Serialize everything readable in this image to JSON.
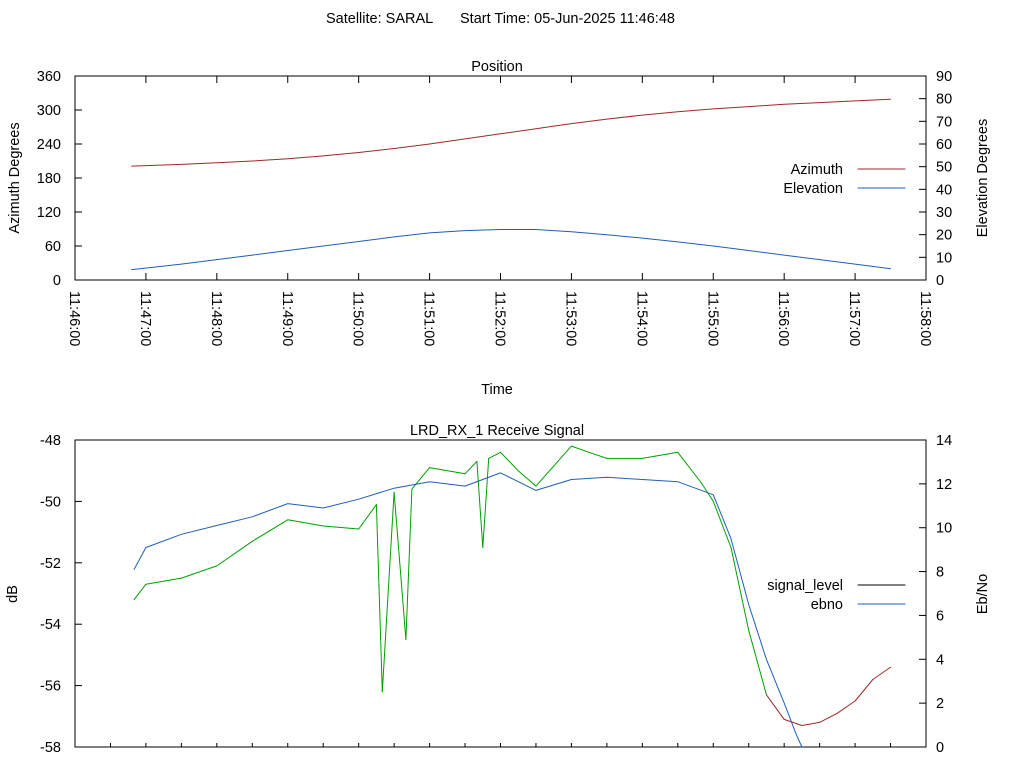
{
  "page": {
    "header_satellite": "Satellite: SARAL",
    "header_start_time": "Start Time: 05-Jun-2025 11:46:48"
  },
  "colors": {
    "azimuth": "#a0282a",
    "elevation": "#1e5fb4",
    "signal_level": "#000000",
    "ebno": "#1e5fb4",
    "signal_good": "#00a000",
    "signal_weak": "#a0282a"
  },
  "chart_data": [
    {
      "type": "line",
      "title": "Position",
      "xlabel": "Time",
      "ylabel": "Azimuth Degrees",
      "y2label": "Elevation Degrees",
      "xlim": [
        "11:46:00",
        "11:58:00"
      ],
      "ylim": [
        0,
        360
      ],
      "y2lim": [
        0,
        90
      ],
      "x_tick_labels": [
        "11:46:00",
        "11:47:00",
        "11:48:00",
        "11:49:00",
        "11:50:00",
        "11:51:00",
        "11:52:00",
        "11:53:00",
        "11:54:00",
        "11:55:00",
        "11:56:00",
        "11:57:00",
        "11:58:00"
      ],
      "y_tick_labels": [
        "0",
        "60",
        "120",
        "180",
        "240",
        "300",
        "360"
      ],
      "y2_tick_labels": [
        "0",
        "10",
        "20",
        "30",
        "40",
        "50",
        "60",
        "70",
        "80",
        "90"
      ],
      "legend_position": "right",
      "grid": false,
      "series": [
        {
          "name": "Azimuth",
          "axis": "y",
          "x": [
            "11:46:48",
            "11:47:30",
            "11:48:00",
            "11:48:30",
            "11:49:00",
            "11:49:30",
            "11:50:00",
            "11:50:30",
            "11:51:00",
            "11:51:30",
            "11:52:00",
            "11:52:30",
            "11:53:00",
            "11:53:30",
            "11:54:00",
            "11:54:30",
            "11:55:00",
            "11:55:30",
            "11:56:00",
            "11:56:30",
            "11:57:00",
            "11:57:30"
          ],
          "values": [
            201,
            204,
            207,
            210,
            214,
            219,
            225,
            232,
            240,
            249,
            258,
            267,
            276,
            284,
            291,
            297,
            302,
            306,
            310,
            313,
            316,
            319
          ]
        },
        {
          "name": "Elevation",
          "axis": "y2",
          "x": [
            "11:46:48",
            "11:47:30",
            "11:48:00",
            "11:48:30",
            "11:49:00",
            "11:49:30",
            "11:50:00",
            "11:50:30",
            "11:51:00",
            "11:51:30",
            "11:52:00",
            "11:52:30",
            "11:53:00",
            "11:53:30",
            "11:54:00",
            "11:54:30",
            "11:55:00",
            "11:55:30",
            "11:56:00",
            "11:56:30",
            "11:57:00",
            "11:57:30"
          ],
          "values": [
            4.6,
            7,
            9,
            11,
            13,
            15,
            17,
            19,
            20.8,
            21.8,
            22.3,
            22.3,
            21.3,
            20,
            18.5,
            16.8,
            15,
            13,
            11,
            9,
            7,
            5
          ]
        }
      ]
    },
    {
      "type": "line",
      "title": "LRD_RX_1 Receive Signal",
      "xlabel": "",
      "ylabel": "dB",
      "y2label": "Eb/No",
      "xlim": [
        "11:46:00",
        "11:58:00"
      ],
      "ylim": [
        -58,
        -48
      ],
      "y2lim": [
        0,
        14
      ],
      "y_tick_labels": [
        "-58",
        "-56",
        "-54",
        "-52",
        "-50",
        "-48"
      ],
      "y2_tick_labels": [
        "0",
        "2",
        "4",
        "6",
        "8",
        "10",
        "12",
        "14"
      ],
      "legend_position": "right",
      "grid": false,
      "series": [
        {
          "name": "signal_level",
          "axis": "y",
          "x": [
            "11:46:50",
            "11:47:00",
            "11:47:30",
            "11:48:00",
            "11:48:30",
            "11:49:00",
            "11:49:30",
            "11:50:00",
            "11:50:15",
            "11:50:20",
            "11:50:30",
            "11:50:40",
            "11:50:45",
            "11:51:00",
            "11:51:30",
            "11:51:40",
            "11:51:45",
            "11:51:50",
            "11:52:00",
            "11:52:15",
            "11:52:30",
            "11:53:00",
            "11:53:15",
            "11:53:30",
            "11:54:00",
            "11:54:30",
            "11:54:50",
            "11:55:00",
            "11:55:15",
            "11:55:30",
            "11:55:45",
            "11:56:00",
            "11:56:15",
            "11:56:30",
            "11:56:45",
            "11:57:00",
            "11:57:15",
            "11:57:30"
          ],
          "values": [
            -53.2,
            -52.7,
            -52.5,
            -52.1,
            -51.3,
            -50.6,
            -50.8,
            -50.9,
            -50.1,
            -56.2,
            -49.7,
            -54.5,
            -49.6,
            -48.9,
            -49.1,
            -48.7,
            -51.5,
            -48.6,
            -48.4,
            -49.0,
            -49.5,
            -48.2,
            -48.4,
            -48.6,
            -48.6,
            -48.4,
            -49.4,
            -50.0,
            -51.5,
            -54.2,
            -56.3,
            -57.1,
            -57.3,
            -57.2,
            -56.9,
            -56.5,
            -55.8,
            -55.4
          ]
        },
        {
          "name": "ebno",
          "axis": "y2",
          "x": [
            "11:46:50",
            "11:47:00",
            "11:47:30",
            "11:48:00",
            "11:48:30",
            "11:49:00",
            "11:49:30",
            "11:50:00",
            "11:50:30",
            "11:51:00",
            "11:51:30",
            "11:52:00",
            "11:52:30",
            "11:53:00",
            "11:53:30",
            "11:54:00",
            "11:54:30",
            "11:55:00",
            "11:55:15",
            "11:55:30",
            "11:55:45",
            "11:56:00",
            "11:56:10",
            "11:56:15"
          ],
          "values": [
            8.1,
            9.1,
            9.7,
            10.1,
            10.5,
            11.1,
            10.9,
            11.3,
            11.8,
            12.1,
            11.9,
            12.5,
            11.7,
            12.2,
            12.3,
            12.2,
            12.1,
            11.5,
            9.5,
            6.5,
            4.0,
            2.0,
            0.6,
            0.0
          ]
        }
      ]
    }
  ]
}
